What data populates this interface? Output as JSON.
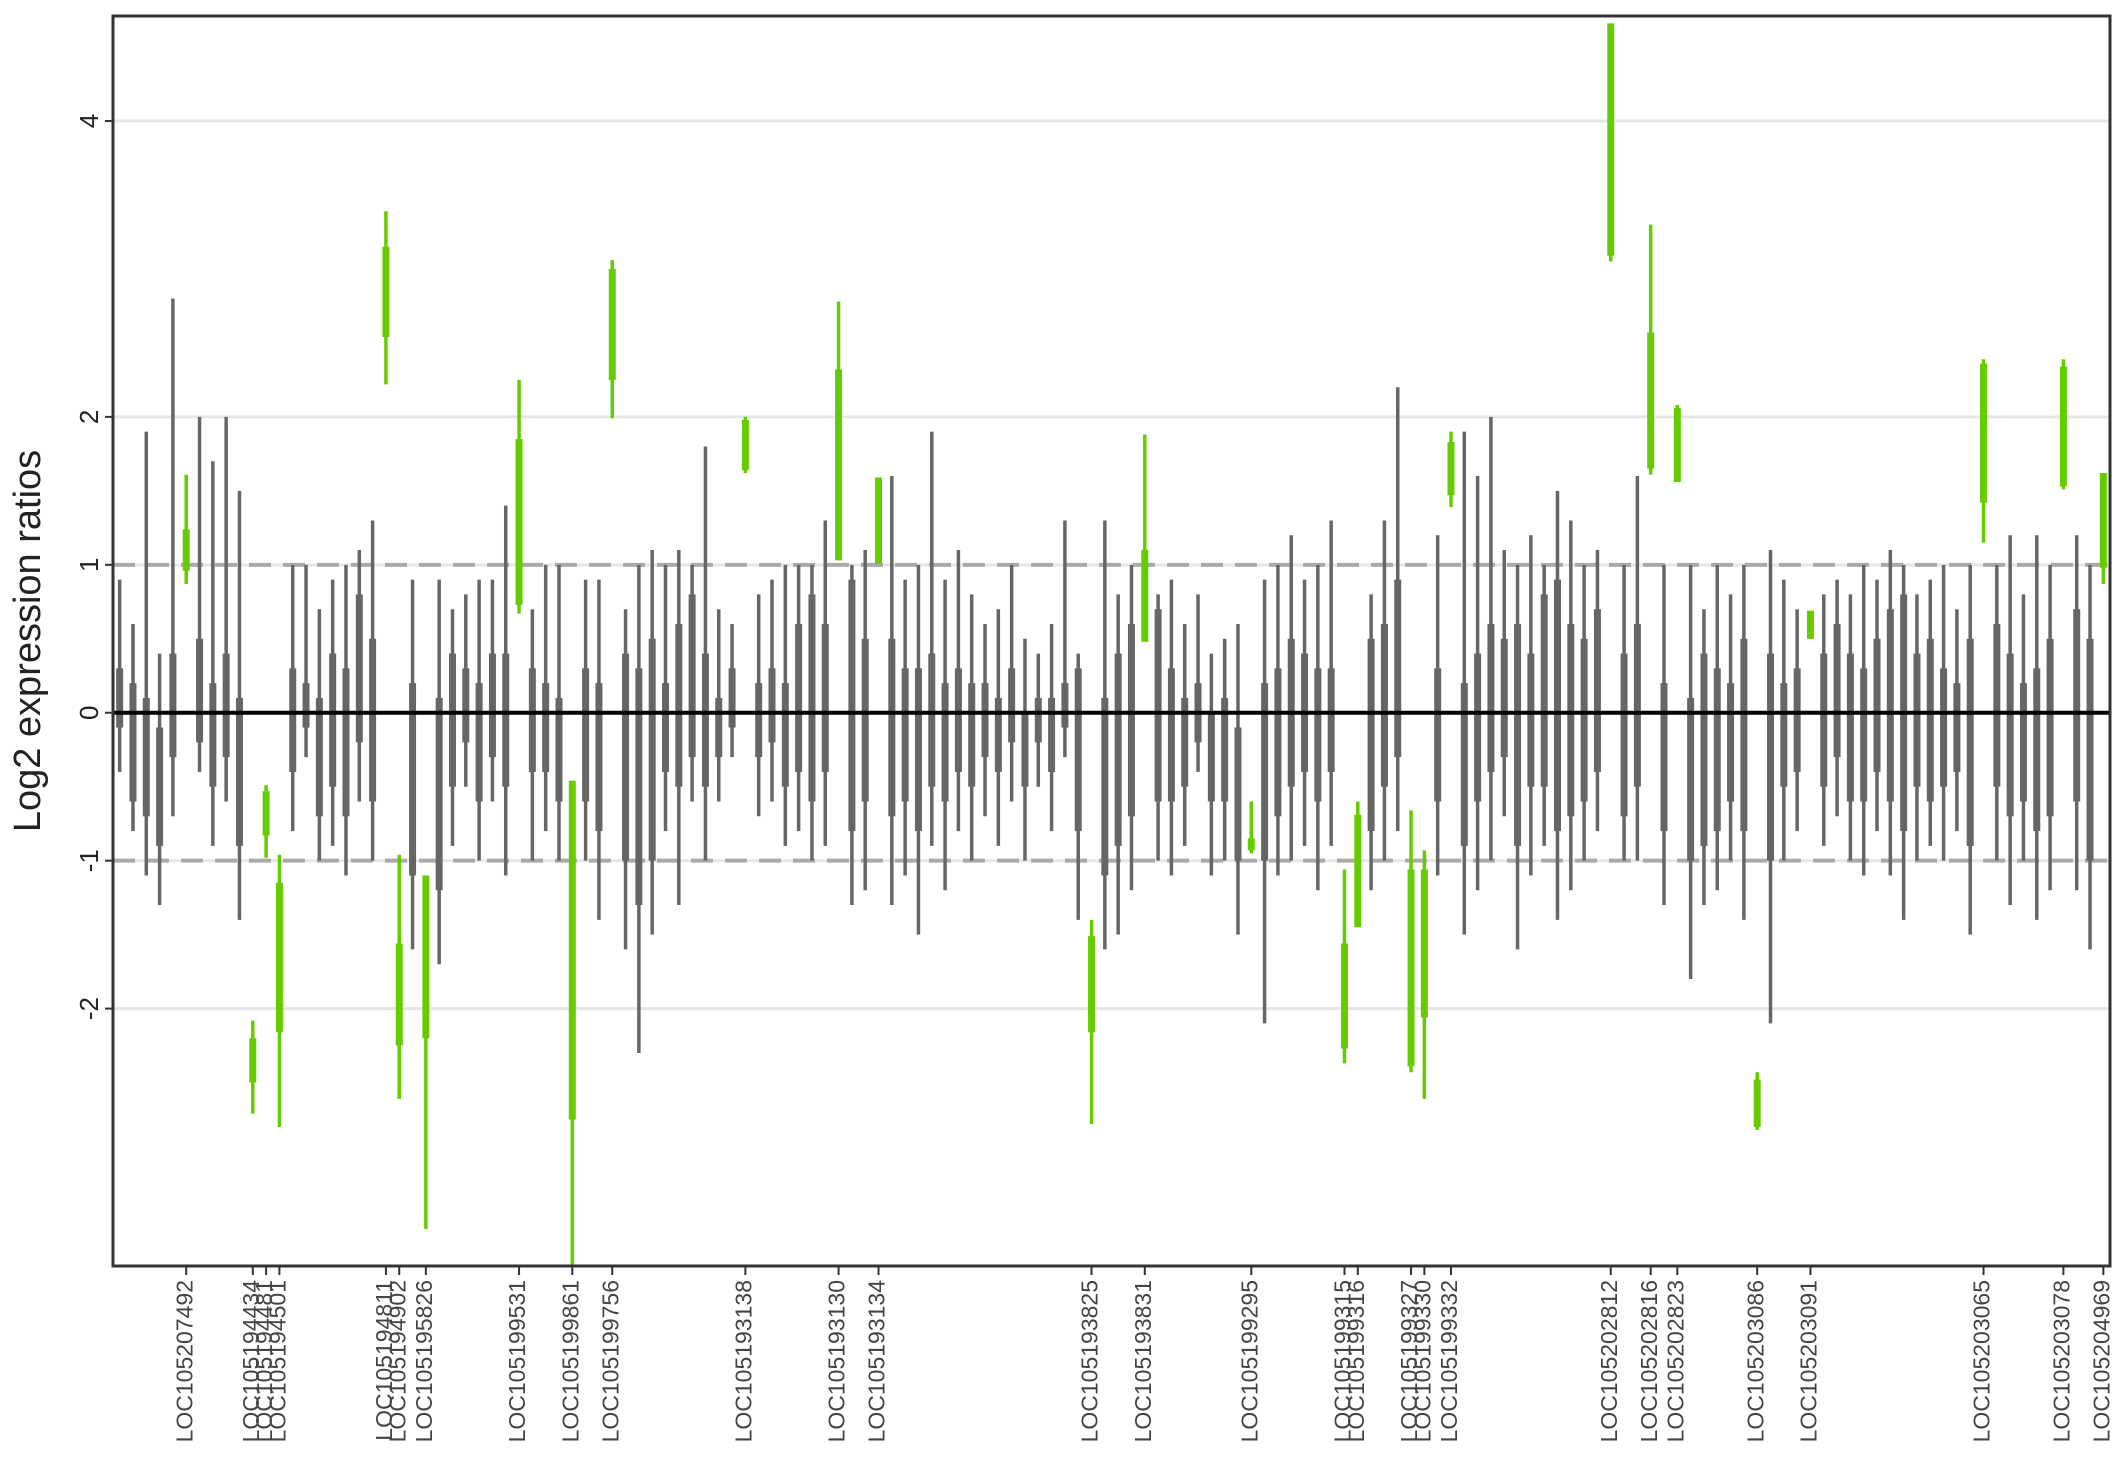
{
  "chart_data": {
    "type": "box",
    "y_label": "Log2 expression ratios",
    "ylim": [
      -3.74,
      4.71
    ],
    "yticks": [
      -2,
      -1,
      0,
      1,
      2,
      4
    ],
    "grid": true,
    "dashed_lines": [
      -1,
      1
    ],
    "solid_line": 0,
    "color": "#666666",
    "highlight_color": "#66cc00",
    "categories": [
      null,
      null,
      null,
      null,
      null,
      "LOC105207492",
      null,
      null,
      null,
      null,
      "LOC105194434",
      "LOC105194481",
      "LOC105194501",
      null,
      null,
      null,
      null,
      null,
      null,
      null,
      "LOC105194811",
      "LOC105194902",
      null,
      "LOC105195826",
      null,
      null,
      null,
      null,
      null,
      null,
      "LOC105199531",
      null,
      null,
      null,
      "LOC105199861",
      null,
      null,
      "LOC105199756",
      null,
      null,
      null,
      null,
      null,
      null,
      null,
      null,
      null,
      "LOC105193138",
      null,
      null,
      null,
      null,
      null,
      null,
      "LOC105193130",
      null,
      null,
      "LOC105193134",
      null,
      null,
      null,
      null,
      null,
      null,
      null,
      null,
      null,
      null,
      null,
      null,
      null,
      null,
      null,
      "LOC105193825",
      null,
      null,
      null,
      "LOC105193831",
      null,
      null,
      null,
      null,
      null,
      null,
      null,
      "LOC105199295",
      null,
      null,
      null,
      null,
      null,
      null,
      "LOC105199315",
      "LOC105199316",
      null,
      null,
      null,
      "LOC105199327",
      "LOC105199330",
      null,
      "LOC105199332",
      null,
      null,
      null,
      null,
      null,
      null,
      null,
      null,
      null,
      null,
      null,
      "LOC105202812",
      null,
      null,
      "LOC105202816",
      null,
      "LOC105202823",
      null,
      null,
      null,
      null,
      null,
      "LOC105203086",
      null,
      null,
      null,
      "LOC105203091",
      null,
      null,
      null,
      null,
      null,
      null,
      null,
      null,
      null,
      null,
      null,
      null,
      "LOC105203065",
      null,
      null,
      null,
      null,
      null,
      "LOC105203078",
      null,
      null,
      "LOC105204969"
    ],
    "whisker_low": [
      -0.4,
      -0.8,
      -1.1,
      -1.3,
      -0.7,
      0.87,
      -0.4,
      -0.9,
      -0.6,
      -1.4,
      -2.71,
      -0.98,
      -2.8,
      -0.8,
      -0.3,
      -1.0,
      -0.9,
      -1.1,
      -0.6,
      -1.0,
      2.22,
      -2.61,
      -1.6,
      -3.49,
      -1.7,
      -0.9,
      -0.5,
      -1.0,
      -0.6,
      -1.1,
      0.67,
      -1.0,
      -0.8,
      -1.0,
      -3.74,
      -1.0,
      -1.4,
      1.99,
      -1.6,
      -2.3,
      -1.5,
      -0.8,
      -1.3,
      -0.6,
      -1.0,
      -0.6,
      -0.3,
      1.62,
      -0.7,
      -0.6,
      -0.9,
      -0.8,
      -1.0,
      -0.9,
      1.03,
      -1.3,
      -1.2,
      1.01,
      -1.3,
      -1.1,
      -1.5,
      -0.9,
      -1.2,
      -0.8,
      -1.0,
      -0.7,
      -0.9,
      -0.6,
      -1.0,
      -0.5,
      -0.8,
      -0.3,
      -1.4,
      -2.78,
      -1.6,
      -1.5,
      -1.2,
      0.48,
      -1.0,
      -1.1,
      -0.9,
      -0.4,
      -1.1,
      -1.0,
      -1.5,
      -0.95,
      -2.1,
      -1.1,
      -1.0,
      -0.9,
      -1.2,
      -0.9,
      -2.37,
      -1.45,
      -1.2,
      -1.0,
      -0.8,
      -2.43,
      -2.61,
      -1.1,
      1.39,
      -1.5,
      -1.2,
      -1.0,
      -0.7,
      -1.6,
      -1.1,
      -0.9,
      -1.4,
      -1.2,
      -1.0,
      -0.8,
      3.05,
      -1.0,
      -1.0,
      1.61,
      -1.3,
      1.56,
      -1.8,
      -1.3,
      -1.2,
      -1.0,
      -1.4,
      -2.82,
      -2.1,
      -1.0,
      -0.8,
      0.5,
      -0.9,
      -0.7,
      -1.0,
      -1.1,
      -0.8,
      -1.1,
      -1.4,
      -1.0,
      -0.9,
      -1.0,
      -0.8,
      -1.5,
      1.15,
      -1.0,
      -1.3,
      -1.0,
      -1.4,
      -1.2,
      1.51,
      -1.2,
      -1.6,
      0.87
    ],
    "box_low": [
      -0.1,
      -0.6,
      -0.7,
      -0.9,
      -0.3,
      0.96,
      -0.2,
      -0.5,
      -0.3,
      -0.9,
      -2.5,
      -0.83,
      -2.16,
      -0.4,
      -0.1,
      -0.7,
      -0.5,
      -0.7,
      -0.2,
      -0.6,
      2.54,
      -2.25,
      -1.1,
      -2.2,
      -1.2,
      -0.5,
      -0.2,
      -0.6,
      -0.3,
      -0.5,
      0.73,
      -0.4,
      -0.4,
      -0.6,
      -2.75,
      -0.6,
      -0.8,
      2.25,
      -1.0,
      -1.3,
      -1.0,
      -0.4,
      -0.5,
      -0.3,
      -0.5,
      -0.3,
      -0.1,
      1.64,
      -0.3,
      -0.2,
      -0.5,
      -0.4,
      -0.6,
      -0.4,
      1.03,
      -0.8,
      -0.6,
      1.01,
      -0.7,
      -0.6,
      -0.8,
      -0.5,
      -0.6,
      -0.4,
      -0.5,
      -0.3,
      -0.4,
      -0.2,
      -0.5,
      -0.2,
      -0.4,
      -0.1,
      -0.8,
      -2.16,
      -1.1,
      -0.9,
      -0.7,
      0.48,
      -0.6,
      -0.6,
      -0.5,
      -0.2,
      -0.6,
      -0.6,
      -1.0,
      -0.93,
      -1.0,
      -0.7,
      -0.5,
      -0.4,
      -0.6,
      -0.4,
      -2.27,
      -1.45,
      -0.8,
      -0.5,
      -0.3,
      -2.39,
      -2.06,
      -0.6,
      1.47,
      -0.9,
      -0.6,
      -0.4,
      -0.3,
      -0.9,
      -0.5,
      -0.5,
      -0.8,
      -0.7,
      -0.6,
      -0.4,
      3.09,
      -0.7,
      -0.5,
      1.65,
      -0.8,
      1.56,
      -1.0,
      -0.9,
      -0.8,
      -0.6,
      -0.8,
      -2.8,
      -1.0,
      -0.5,
      -0.4,
      0.5,
      -0.5,
      -0.3,
      -0.6,
      -0.6,
      -0.4,
      -0.6,
      -0.8,
      -0.5,
      -0.6,
      -0.5,
      -0.4,
      -0.9,
      1.42,
      -0.5,
      -0.7,
      -0.6,
      -0.8,
      -0.7,
      1.53,
      -0.6,
      -1.0,
      0.98
    ],
    "box_high": [
      0.3,
      0.2,
      0.1,
      -0.1,
      0.4,
      1.24,
      0.5,
      0.2,
      0.4,
      0.1,
      -2.2,
      -0.53,
      -1.15,
      0.3,
      0.2,
      0.1,
      0.4,
      0.3,
      0.8,
      0.5,
      3.15,
      -1.56,
      0.2,
      -1.1,
      0.1,
      0.4,
      0.3,
      0.2,
      0.4,
      0.4,
      1.85,
      0.3,
      0.2,
      0.1,
      -0.46,
      0.3,
      0.2,
      3.0,
      0.4,
      0.3,
      0.5,
      0.2,
      0.6,
      0.8,
      0.4,
      0.1,
      0.3,
      1.98,
      0.2,
      0.3,
      0.2,
      0.6,
      0.8,
      0.6,
      2.32,
      0.9,
      0.5,
      1.59,
      0.5,
      0.3,
      0.3,
      0.4,
      0.2,
      0.3,
      0.2,
      0.2,
      0.1,
      0.3,
      0.0,
      0.1,
      0.1,
      0.2,
      0.3,
      -1.51,
      0.1,
      0.4,
      0.6,
      1.1,
      0.7,
      0.3,
      0.1,
      0.2,
      0.0,
      0.1,
      -0.1,
      -0.85,
      0.2,
      0.3,
      0.5,
      0.4,
      0.3,
      0.3,
      -1.56,
      -0.69,
      0.5,
      0.6,
      0.9,
      -1.06,
      -1.06,
      0.3,
      1.83,
      0.2,
      0.4,
      0.6,
      0.5,
      0.6,
      0.4,
      0.8,
      0.9,
      0.6,
      0.5,
      0.7,
      4.66,
      0.4,
      0.6,
      2.57,
      0.2,
      2.06,
      0.1,
      0.4,
      0.3,
      0.2,
      0.5,
      -2.48,
      0.4,
      0.2,
      0.3,
      0.69,
      0.4,
      0.6,
      0.4,
      0.3,
      0.5,
      0.7,
      0.8,
      0.4,
      0.5,
      0.3,
      0.2,
      0.5,
      2.36,
      0.6,
      0.4,
      0.2,
      0.3,
      0.5,
      2.34,
      0.7,
      0.5,
      1.62
    ],
    "whisker_high": [
      0.9,
      0.6,
      1.9,
      0.4,
      2.8,
      1.61,
      2.0,
      1.7,
      2.0,
      1.5,
      -2.08,
      -0.49,
      -0.96,
      1.0,
      1.0,
      0.7,
      0.9,
      1.0,
      1.1,
      1.3,
      3.39,
      -0.96,
      0.9,
      -1.1,
      0.9,
      0.7,
      0.8,
      0.9,
      0.9,
      1.4,
      2.25,
      0.7,
      1.0,
      1.0,
      -0.46,
      0.9,
      0.9,
      3.06,
      0.7,
      1.0,
      1.1,
      1.0,
      1.1,
      1.0,
      1.8,
      0.7,
      0.6,
      2.0,
      0.8,
      0.9,
      1.0,
      1.0,
      1.0,
      1.3,
      2.78,
      1.0,
      1.1,
      1.59,
      1.6,
      0.9,
      1.0,
      1.9,
      0.9,
      1.1,
      0.8,
      0.6,
      0.7,
      1.0,
      0.5,
      0.4,
      0.6,
      1.3,
      0.4,
      -1.4,
      1.3,
      0.8,
      1.0,
      1.88,
      0.8,
      0.9,
      0.6,
      0.8,
      0.4,
      0.5,
      0.6,
      -0.6,
      0.9,
      1.0,
      1.2,
      0.9,
      1.0,
      1.3,
      -1.06,
      -0.6,
      0.8,
      1.3,
      2.2,
      -0.66,
      -0.93,
      1.2,
      1.9,
      1.9,
      1.6,
      2.0,
      1.1,
      1.0,
      1.2,
      1.0,
      1.5,
      1.3,
      1.0,
      1.1,
      4.66,
      1.0,
      1.6,
      3.3,
      1.0,
      2.08,
      1.0,
      0.7,
      1.0,
      0.8,
      1.0,
      -2.43,
      1.1,
      0.9,
      0.7,
      0.69,
      0.8,
      0.9,
      0.8,
      1.0,
      0.9,
      1.1,
      1.0,
      0.8,
      0.9,
      1.0,
      0.7,
      1.0,
      2.39,
      1.0,
      1.2,
      0.8,
      1.2,
      1.0,
      2.39,
      1.2,
      1.0,
      1.62
    ]
  }
}
